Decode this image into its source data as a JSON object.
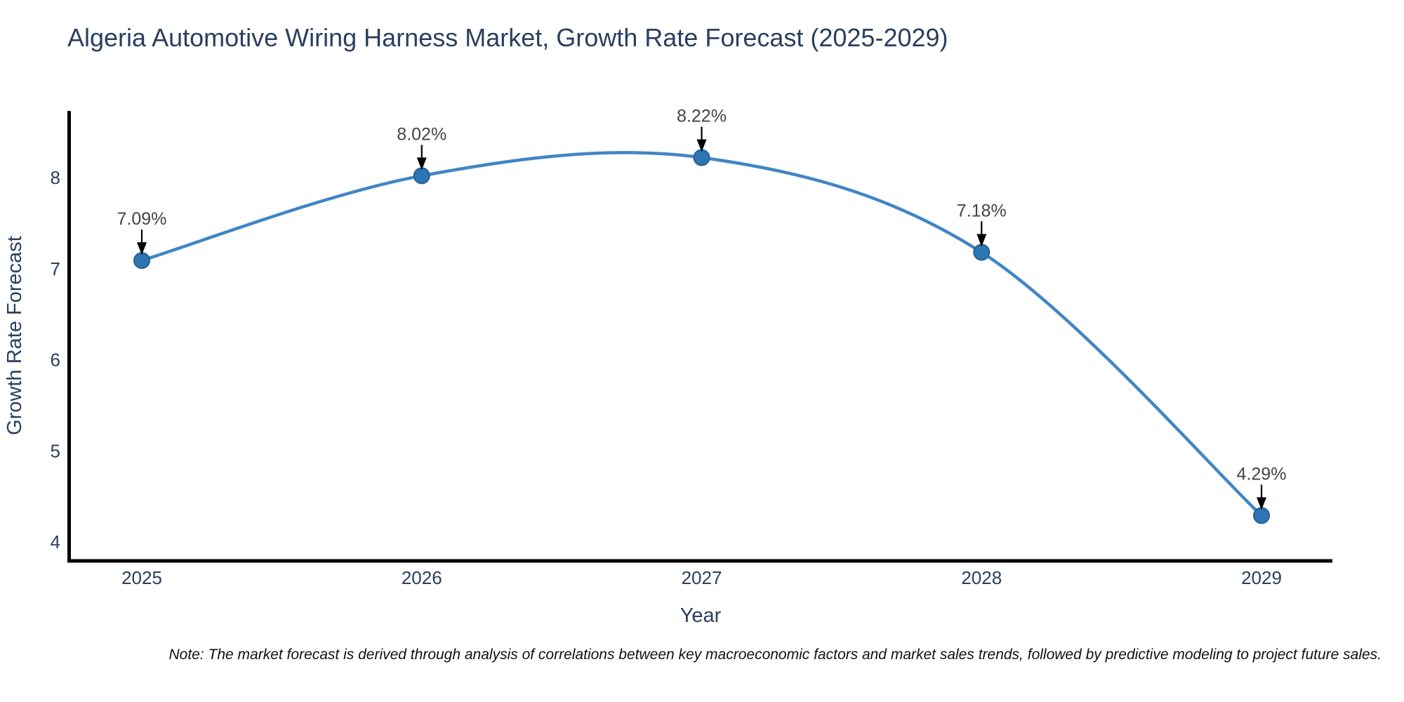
{
  "chart_data": {
    "type": "line",
    "line_shape": "spline",
    "title": "Algeria Automotive Wiring Harness Market, Growth Rate Forecast (2025-2029)",
    "x": [
      2025,
      2026,
      2027,
      2028,
      2029
    ],
    "y": [
      7.09,
      8.02,
      8.22,
      7.18,
      4.29
    ],
    "point_labels": [
      "7.09%",
      "8.02%",
      "8.22%",
      "7.18%",
      "4.29%"
    ],
    "xlabel": "Year",
    "ylabel": "Growth Rate Forecast",
    "yticks": [
      8,
      7,
      6,
      5,
      4
    ],
    "ylim": [
      3.78,
      8.73
    ],
    "grid": false,
    "legend": "none",
    "markers": true,
    "annotations_arrow": "down-black",
    "note": "Note: The market forecast is derived through analysis of correlations between key macroeconomic factors and market sales trends, followed by predictive modeling to project future sales.",
    "colors": {
      "line": "#4186c5",
      "marker_fill": "#2e75b5",
      "marker_edge": "#24628f",
      "axis": "#000000",
      "label_text": "#2a3f5f",
      "annotation_text": "#444444",
      "arrow": "#000000",
      "background": "#ffffff"
    }
  }
}
